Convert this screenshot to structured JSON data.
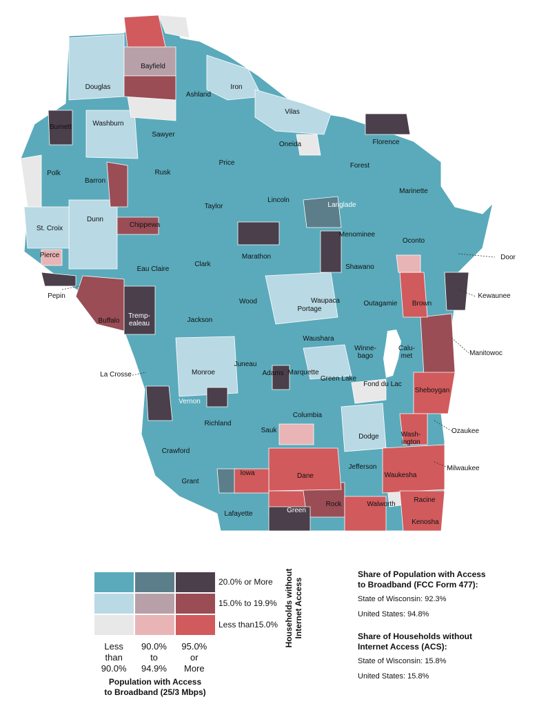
{
  "map": {
    "region": "Wisconsin",
    "colors": {
      "low_access_low_hh": "#e8e8e8",
      "low_access_mid_hh": "#ffffff",
      "mid_access_low_hh": "#b9d9e4",
      "mid_access_mid_hh": "#e8b4b6",
      "mid_access_high_hh": "#b7a0a8",
      "high_access_low_hh": "#5aaabb",
      "high_access_high_hh": "#4a3f4a",
      "red_mid": "#9a4d55",
      "red_low": "#d15a5c",
      "slate": "#5c7e8a"
    },
    "county_labels": [
      "Douglas",
      "Bayfield",
      "Ashland",
      "Iron",
      "Vilas",
      "Burnett",
      "Washburn",
      "Sawyer",
      "Florence",
      "Oneida",
      "Forest",
      "Polk",
      "Barron",
      "Rusk",
      "Price",
      "Marinette",
      "Lincoln",
      "Langlade",
      "Taylor",
      "St. Croix",
      "Dunn",
      "Chippewa",
      "Menominee",
      "Oconto",
      "Marathon",
      "Door",
      "Pierce",
      "Eau Claire",
      "Clark",
      "Shawano",
      "Kewaunee",
      "Pepin",
      "Wood",
      "Waupaca",
      "Outagamie",
      "Brown",
      "Buffalo",
      "Tremp-ealeau",
      "Portage",
      "Jackson",
      "Waushara",
      "Winne-bago",
      "Calu-met",
      "Manitowoc",
      "Juneau",
      "Adams",
      "Monroe",
      "La Crosse",
      "Marquette",
      "Green Lake",
      "Fond du Lac",
      "Sheboygan",
      "Vernon",
      "Richland",
      "Sauk",
      "Columbia",
      "Dodge",
      "Wash-ington",
      "Ozaukee",
      "Crawford",
      "Jefferson",
      "Milwaukee",
      "Grant",
      "Iowa",
      "Dane",
      "Waukesha",
      "Racine",
      "Lafayette",
      "Green",
      "Rock",
      "Walworth",
      "Kenosha"
    ]
  },
  "legend": {
    "row_labels": [
      "20.0% or More",
      "15.0% to 19.9%",
      "Less than15.0%"
    ],
    "col_labels": [
      [
        "Less",
        "than",
        "90.0%"
      ],
      [
        "90.0%",
        "to",
        "94.9%"
      ],
      [
        "95.0%",
        "or",
        "More"
      ]
    ],
    "x_title_1": "Population with Access",
    "x_title_2": "to Broadband (25/3 Mbps)",
    "y_title_1": "Households without",
    "y_title_2": "Internet Access",
    "cells": [
      [
        "#5aaabb",
        "#5c7e8a",
        "#4a3f4a"
      ],
      [
        "#b9d9e4",
        "#b7a0a8",
        "#9a4d55"
      ],
      [
        "#e8e8e8",
        "#e8b4b6",
        "#d15a5c"
      ]
    ]
  },
  "stats": {
    "fcc_title_1": "Share of Population with Access",
    "fcc_title_2": "to Broadband (FCC Form 477):",
    "fcc_state": "State of Wisconsin: 92.3%",
    "fcc_us": "United States: 94.8%",
    "acs_title_1": "Share of Households without",
    "acs_title_2": "Internet Access (ACS):",
    "acs_state": "State of Wisconsin: 15.8%",
    "acs_us": "United States: 15.8%"
  }
}
